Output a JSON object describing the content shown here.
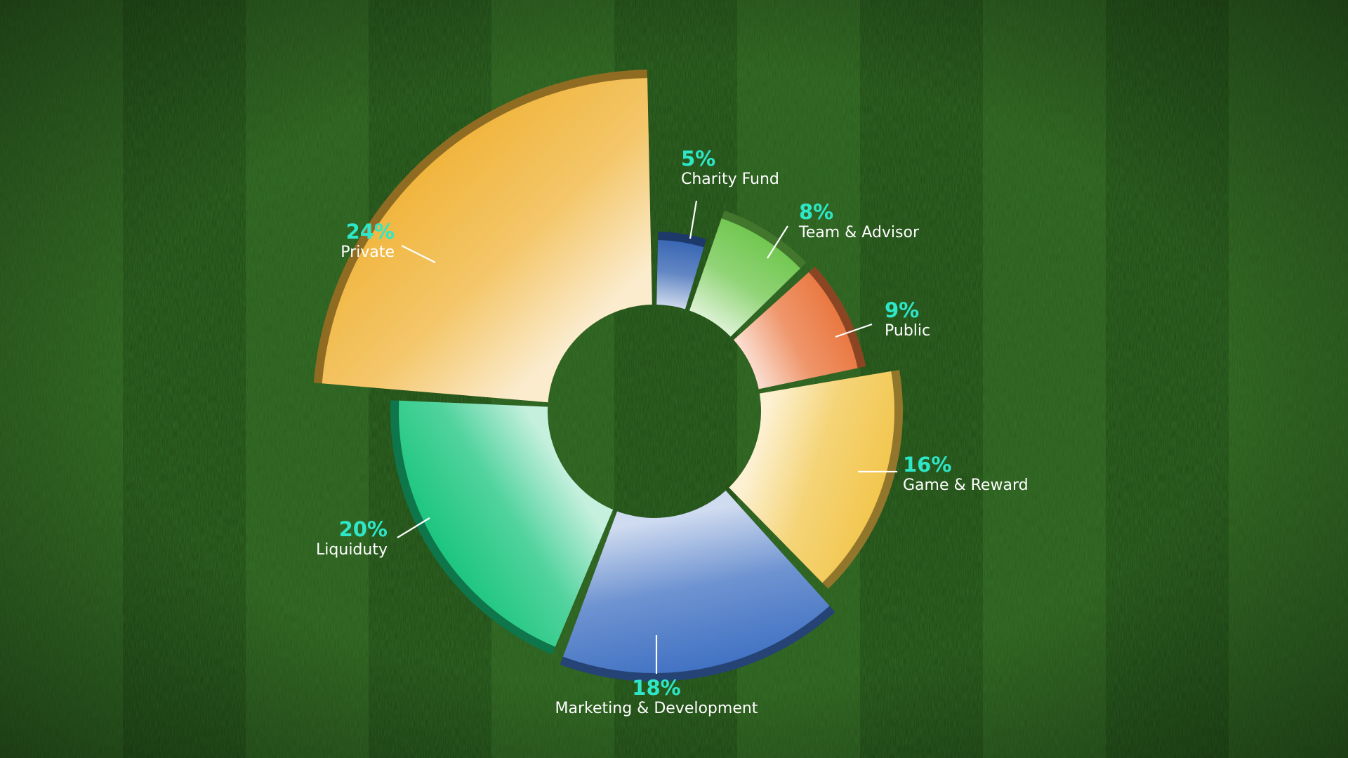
{
  "chart_data": {
    "type": "pie",
    "variant": "donut",
    "title": "",
    "slices": [
      {
        "label": "Charity Fund",
        "value": 5,
        "value_label": "5%",
        "color": "#2f5fb0"
      },
      {
        "label": "Team & Advisor",
        "value": 8,
        "value_label": "8%",
        "color": "#6cc54a"
      },
      {
        "label": "Public",
        "value": 9,
        "value_label": "9%",
        "color": "#e9733a"
      },
      {
        "label": "Game & Reward",
        "value": 16,
        "value_label": "16%",
        "color": "#f2c54a"
      },
      {
        "label": "Marketing & Development",
        "value": 18,
        "value_label": "18%",
        "color": "#3d6fc2"
      },
      {
        "label": "Liquiduty",
        "value": 20,
        "value_label": "20%",
        "color": "#17c47c"
      },
      {
        "label": "Private",
        "value": 24,
        "value_label": "24%",
        "color": "#f0b43a"
      }
    ],
    "value_label_color": "#2ee6c8",
    "category_label_color": "#ffffff",
    "background": "grass-field"
  }
}
